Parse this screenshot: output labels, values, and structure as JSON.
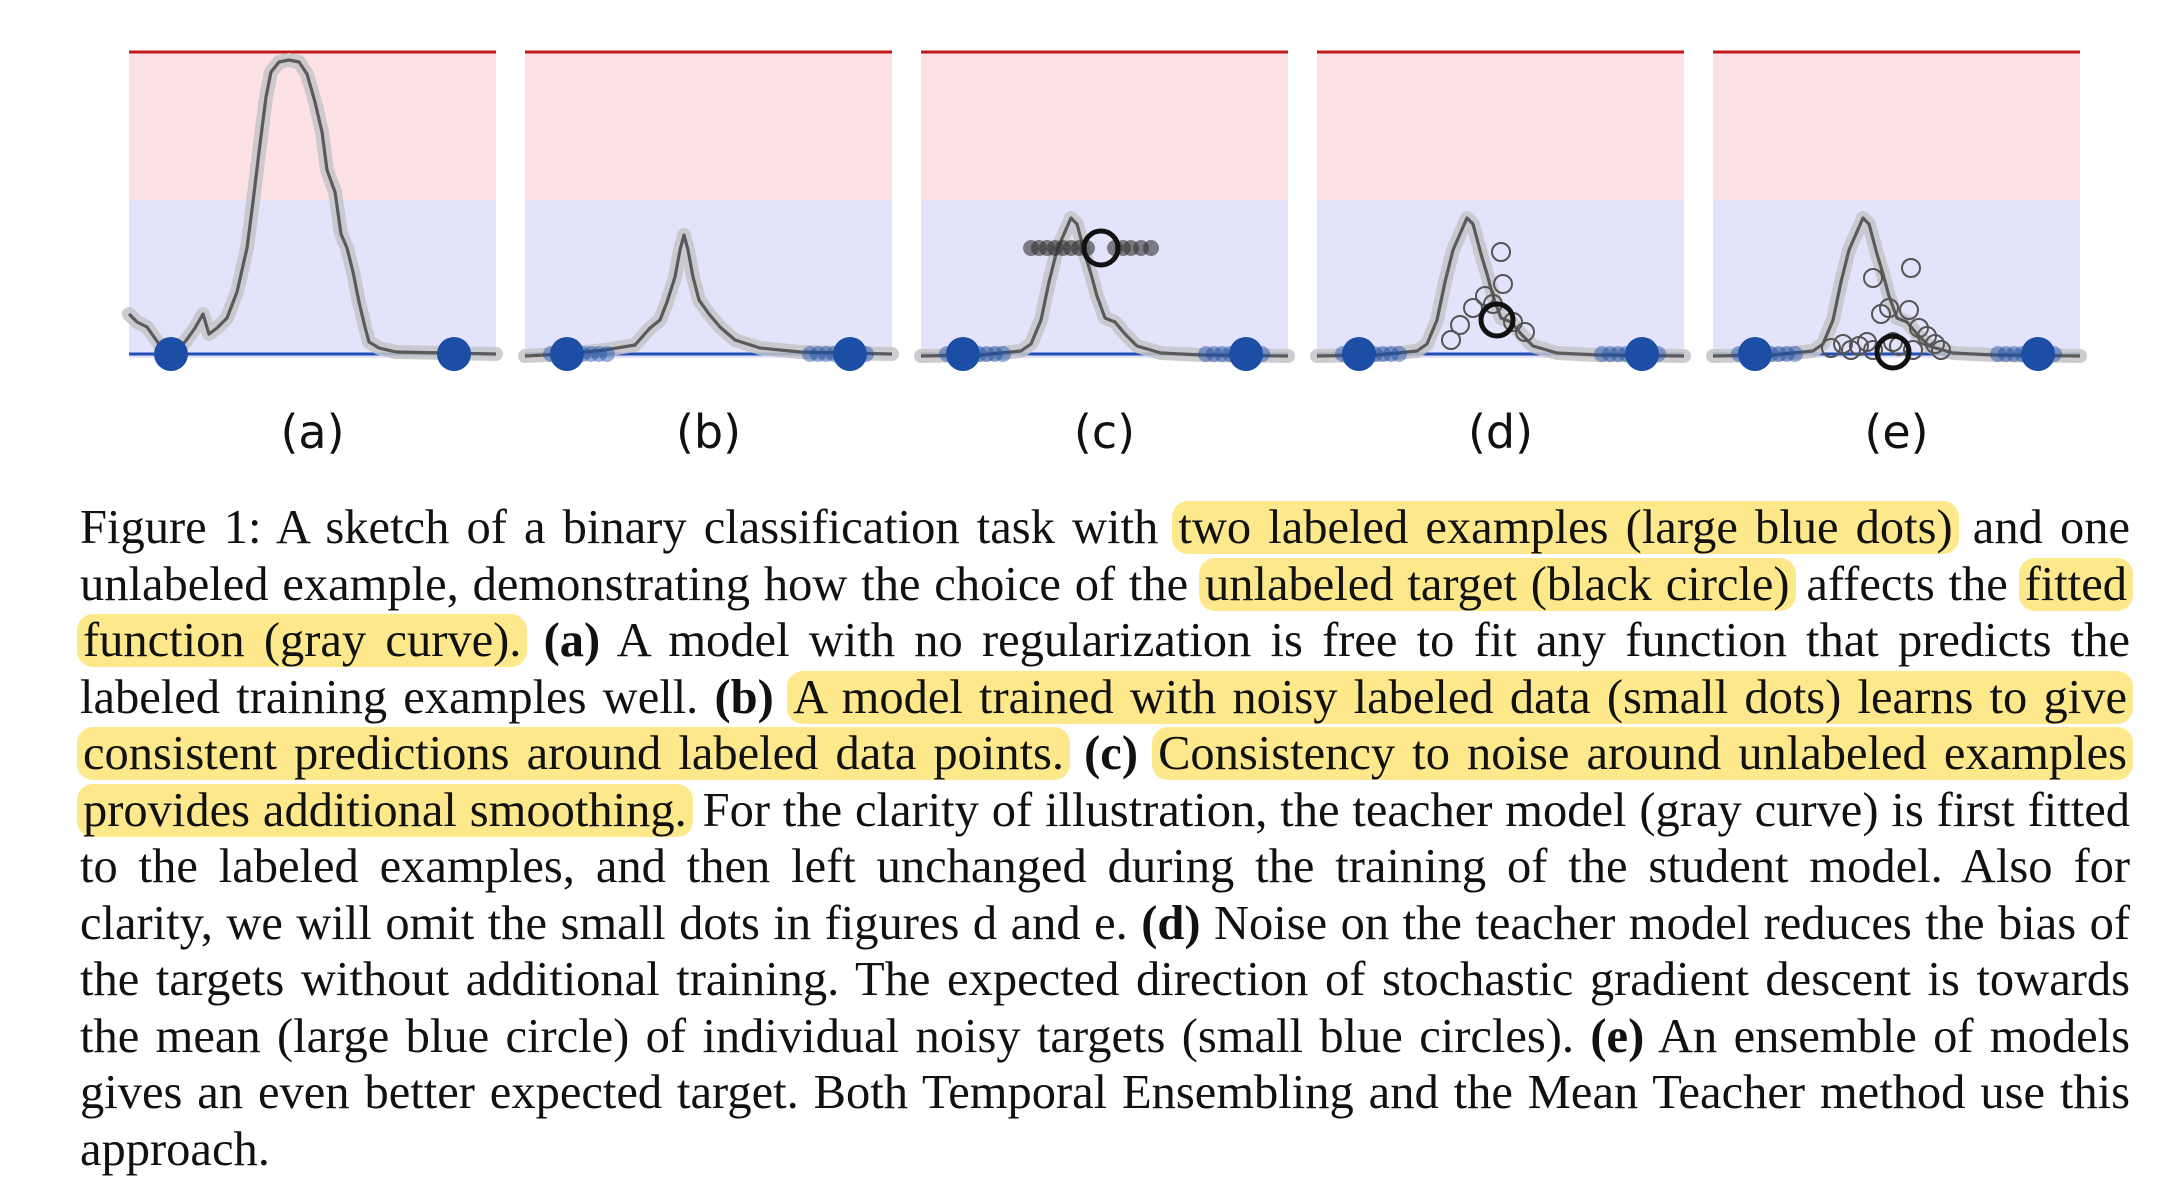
{
  "figure": {
    "panels": [
      {
        "label": "(a)",
        "curve": "a",
        "target": null
      },
      {
        "label": "(b)",
        "curve": "b",
        "target": null
      },
      {
        "label": "(c)",
        "curve": "c",
        "target": "single"
      },
      {
        "label": "(d)",
        "curve": "c",
        "target": "noisy"
      },
      {
        "label": "(e)",
        "curve": "c",
        "target": "ensemble"
      }
    ],
    "colors": {
      "red_region": "#fde1e4",
      "red_line": "#c01a1a",
      "blue_region": "#e3e3fb",
      "blue_line": "#1f4fb8",
      "labeled_dot": "#1d4ea6",
      "curve": "#5a5a5a",
      "curve_halo": "#c4c4c8",
      "highlight": "#fde98b"
    }
  },
  "caption": {
    "s1": "Figure 1:  A sketch of a binary classification task with ",
    "h1": "two labeled examples (large blue dots)",
    "s2": " and one unlabeled example, demonstrating how the choice of the ",
    "h2": "unlabeled target (black circle)",
    "s3": " affects the ",
    "h3": "fitted function (gray curve).",
    "s4": " ",
    "a_label": "(a)",
    "s5": " A model with no regularization is free to fit any function that predicts the labeled training examples well. ",
    "b_label": "(b)",
    "s6": " ",
    "h4": "A model trained with noisy labeled data (small dots) learns to give consistent predictions around labeled data points.",
    "s7": "  ",
    "c_label": "(c)",
    "s8": " ",
    "h5": "Consistency to noise around unlabeled examples provides additional smoothing.",
    "s9": " For the clarity of illustration, the teacher model (gray curve) is first fitted to the labeled examples, and then left unchanged during the training of the student model. Also for clarity, we will omit the small dots in figures d and e. ",
    "d_label": "(d)",
    "s10": " Noise on the teacher model reduces the bias of the targets without additional training. The expected direction of stochastic gradient descent is towards the mean (large blue circle) of individual noisy targets (small blue circles). ",
    "e_label": "(e)",
    "s11": " An ensemble of models gives an even better expected target. Both Temporal Ensembling and the Mean Teacher method use this approach."
  }
}
